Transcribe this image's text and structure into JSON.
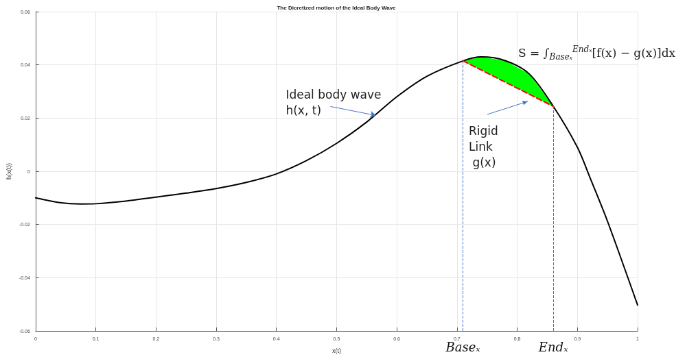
{
  "chart_data": {
    "type": "line",
    "title": "The Dicretized motion of the Ideal Body Wave",
    "xlabel": "x(t)",
    "ylabel": "h(x(t))",
    "xlim": [
      0,
      1
    ],
    "xticks": [
      0,
      0.1,
      0.2,
      0.3,
      0.4,
      0.5,
      0.6,
      0.7,
      0.8,
      0.9,
      1
    ],
    "ylim": [
      -0.06,
      0.06
    ],
    "yticks": [
      -0.06,
      -0.04,
      -0.02,
      0,
      0.02,
      0.04,
      0.06
    ],
    "grid": true,
    "marker": "none",
    "line_style": "solid",
    "series": [
      {
        "color": "#000000",
        "x": [
          0,
          0.04,
          0.075,
          0.1,
          0.15,
          0.2,
          0.25,
          0.3,
          0.35,
          0.4,
          0.45,
          0.5,
          0.55,
          0.6,
          0.65,
          0.71,
          0.74,
          0.78,
          0.82,
          0.86,
          0.9,
          0.922,
          0.95,
          1
        ],
        "values": [
          -0.01,
          -0.0118,
          -0.0123,
          -0.0122,
          -0.0112,
          -0.0097,
          -0.0082,
          -0.0065,
          -0.0042,
          -0.001,
          0.004,
          0.0105,
          0.0185,
          0.028,
          0.0357,
          0.0415,
          0.043,
          0.0416,
          0.0366,
          0.0244,
          0.009,
          -0.003,
          -0.0188,
          -0.0503
        ]
      },
      {
        "type": "area",
        "color": "#00ff00",
        "x": [
          0.71,
          0.74,
          0.78,
          0.82,
          0.86
        ],
        "values": [
          0.0415,
          0.043,
          0.0416,
          0.0366,
          0.0244
        ]
      },
      {
        "type": "line",
        "color": "#ff0000",
        "line_style": "dashed",
        "x": [
          0.71,
          0.86
        ],
        "values": [
          0.0415,
          0.0244
        ]
      }
    ],
    "ref_lines": [
      {
        "axis": "x",
        "value": 0.71,
        "label": "Baseₓ",
        "color": "#4472c4",
        "line_style": "dashed"
      },
      {
        "axis": "x",
        "value": 0.86,
        "label": "Endₓ",
        "color": "#4472c4",
        "line_style": "dashed"
      }
    ],
    "annotations": [
      {
        "text": "Ideal body wave\nh(x, t)",
        "x": 0.565,
        "y": 0.021
      },
      "Rigid\nLink\n g(x)",
      "S = ∫$_{Baseₓ}$$^{Endₓ}$[f(x) − g(x)]dx"
    ]
  }
}
